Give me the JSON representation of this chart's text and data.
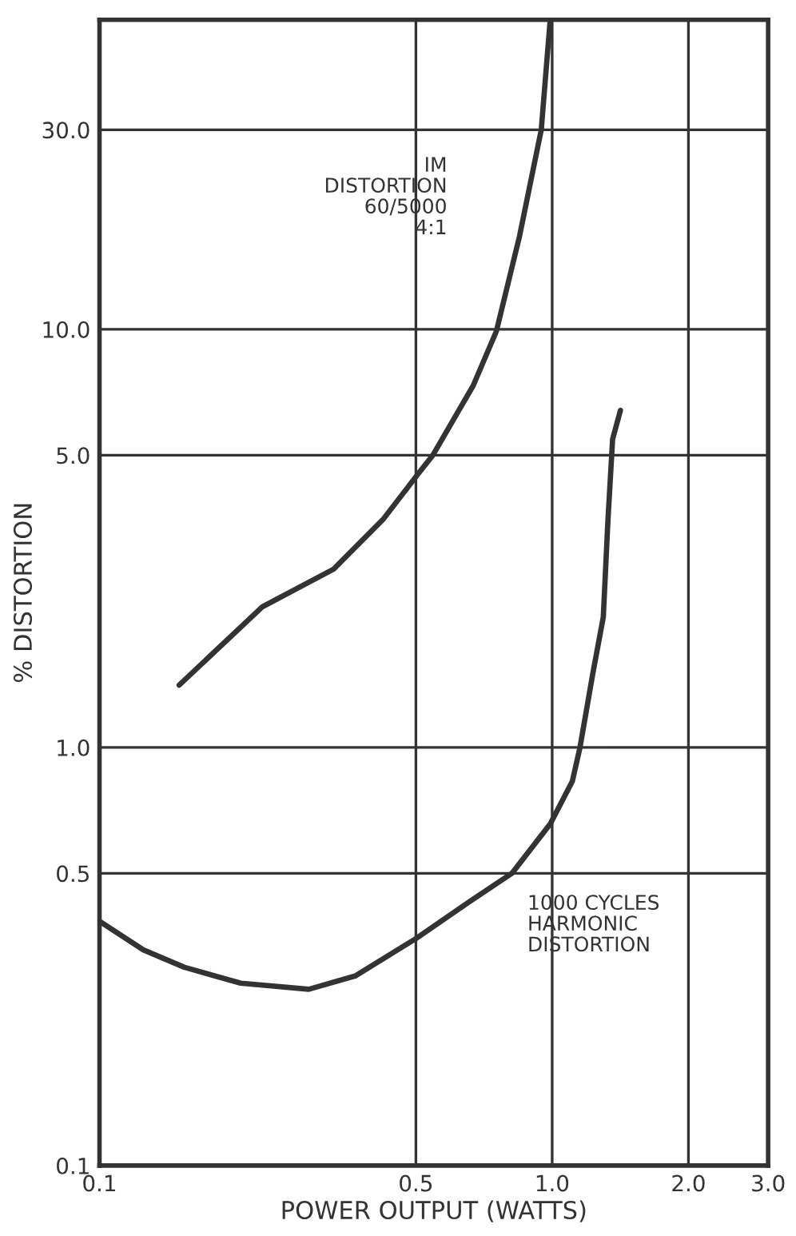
{
  "chart_data": {
    "type": "line",
    "xlabel": "POWER OUTPUT (WATTS)",
    "ylabel": "% DISTORTION",
    "log": "xy",
    "grid": true,
    "line_style": "solid",
    "xlim": [
      0.1,
      3.0
    ],
    "xticks": [
      0.1,
      0.5,
      {
        "value": 1,
        "label": "1.0"
      },
      {
        "value": 2,
        "label": "2.0"
      },
      {
        "value": 3,
        "label": "3.0"
      }
    ],
    "ylim": [
      0.1,
      55
    ],
    "yticks": [
      0.1,
      0.5,
      {
        "value": 1,
        "label": "1.0"
      },
      {
        "value": 5,
        "label": "5.0"
      },
      {
        "value": 10,
        "label": "10.0"
      },
      {
        "value": 30,
        "label": "30.0"
      }
    ],
    "annotations": [
      "IM\nDISTORTION\n60/5000\n4:1",
      "1000 CYCLES\nHARMONIC\nDISTORTION"
    ],
    "series": [
      {
        "color": "#333333",
        "x": [
          0.15,
          0.229,
          0.329,
          0.424,
          0.5,
          0.545,
          0.669,
          0.753,
          0.847,
          0.946,
          0.99
        ],
        "values": [
          1.41,
          2.17,
          2.67,
          3.52,
          4.44,
          5.0,
          7.33,
          9.9,
          16.7,
          30,
          55
        ]
      },
      {
        "color": "#333333",
        "x": [
          0.1,
          0.125,
          0.154,
          0.205,
          0.29,
          0.367,
          0.5,
          0.653,
          0.815,
          0.99,
          1.108,
          1.152,
          1.228,
          1.297,
          1.328,
          1.36,
          1.415
        ],
        "values": [
          0.384,
          0.328,
          0.298,
          0.273,
          0.264,
          0.284,
          0.349,
          0.426,
          0.5,
          0.656,
          0.83,
          1.0,
          1.49,
          2.05,
          3.49,
          5.46,
          6.4
        ]
      }
    ]
  }
}
